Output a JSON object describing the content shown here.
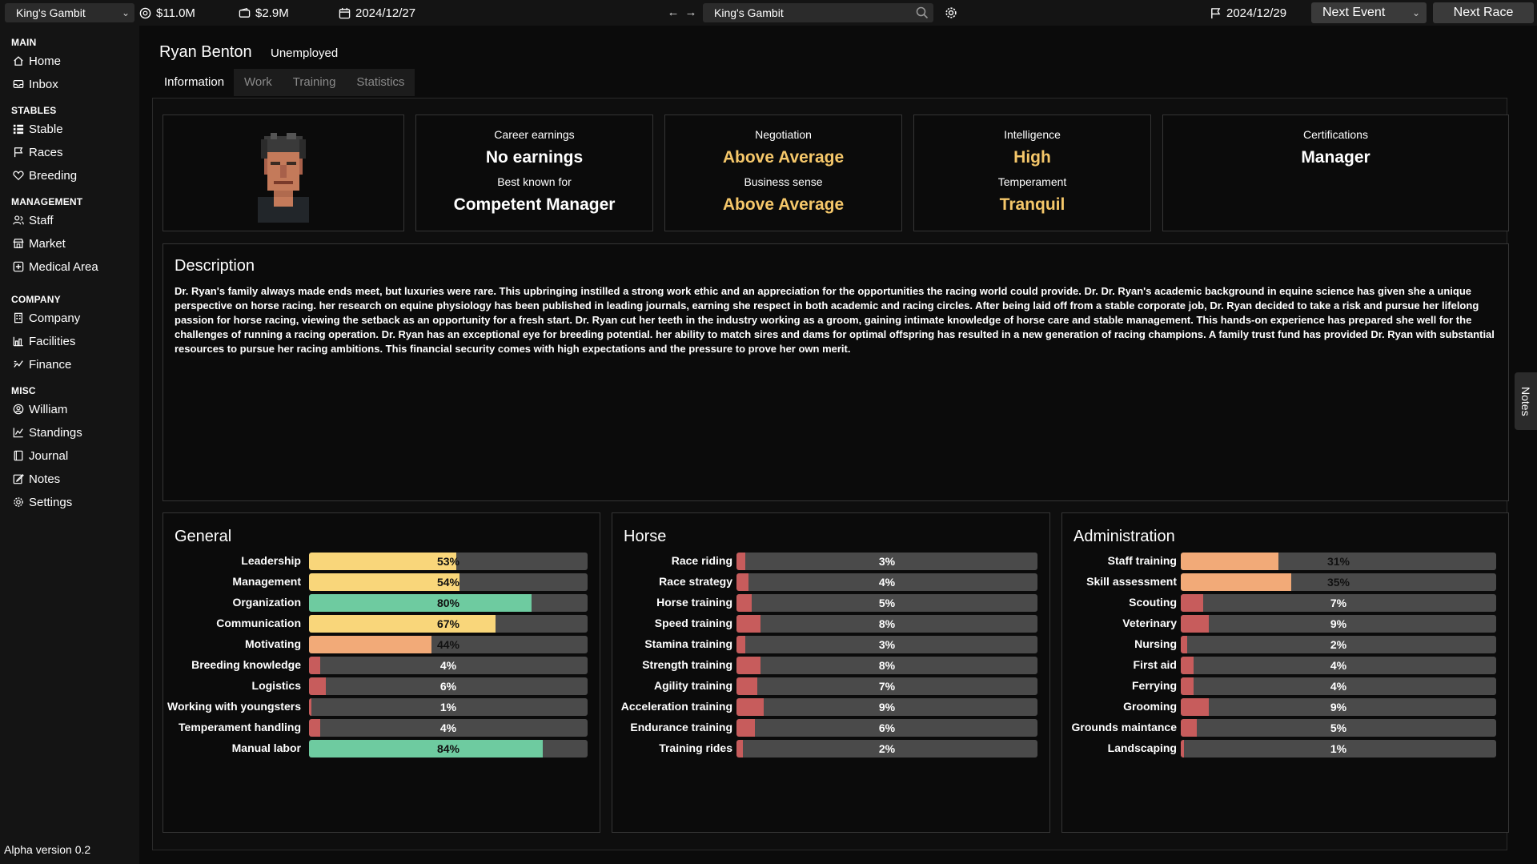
{
  "topbar": {
    "stable_name": "King's Gambit",
    "cash": "$11.0M",
    "bank": "$2.9M",
    "current_date": "2024/12/27",
    "search_value": "King's Gambit",
    "race_date": "2024/12/29",
    "next_event_label": "Next Event",
    "next_race_label": "Next Race"
  },
  "sidebar": {
    "sections": [
      {
        "title": "MAIN",
        "items": [
          {
            "label": "Home",
            "icon": "home-icon"
          },
          {
            "label": "Inbox",
            "icon": "inbox-icon"
          }
        ]
      },
      {
        "title": "STABLES",
        "items": [
          {
            "label": "Stable",
            "icon": "stable-icon"
          },
          {
            "label": "Races",
            "icon": "flag-icon"
          },
          {
            "label": "Breeding",
            "icon": "heart-icon"
          }
        ]
      },
      {
        "title": "MANAGEMENT",
        "items": [
          {
            "label": "Staff",
            "icon": "staff-icon"
          },
          {
            "label": "Market",
            "icon": "market-icon"
          },
          {
            "label": "Medical Area",
            "icon": "medical-icon"
          }
        ]
      },
      {
        "title": "COMPANY",
        "items": [
          {
            "label": "Company",
            "icon": "building-icon"
          },
          {
            "label": "Facilities",
            "icon": "facilities-icon"
          },
          {
            "label": "Finance",
            "icon": "finance-icon"
          }
        ]
      },
      {
        "title": "MISC",
        "items": [
          {
            "label": "William",
            "icon": "user-circle-icon"
          },
          {
            "label": "Standings",
            "icon": "chart-icon"
          },
          {
            "label": "Journal",
            "icon": "journal-icon"
          },
          {
            "label": "Notes",
            "icon": "notes-icon"
          },
          {
            "label": "Settings",
            "icon": "gear-icon"
          }
        ]
      }
    ],
    "version": "Alpha version 0.2"
  },
  "person": {
    "name": "Ryan Benton",
    "status": "Unemployed"
  },
  "tabs": [
    "Information",
    "Work",
    "Training",
    "Statistics"
  ],
  "cards": {
    "career_earnings_label": "Career earnings",
    "career_earnings_value": "No earnings",
    "best_known_label": "Best known for",
    "best_known_value": "Competent Manager",
    "negotiation_label": "Negotiation",
    "negotiation_value": "Above Average",
    "business_label": "Business sense",
    "business_value": "Above Average",
    "intelligence_label": "Intelligence",
    "intelligence_value": "High",
    "temperament_label": "Temperament",
    "temperament_value": "Tranquil",
    "certifications_label": "Certifications",
    "certifications_value": "Manager"
  },
  "description": {
    "title": "Description",
    "text": "Dr. Ryan's family always made ends meet, but luxuries were rare. This upbringing instilled a strong work ethic and an appreciation for the opportunities the racing world could provide. Dr. Dr. Ryan's academic background in equine science has given she a unique perspective on horse racing. her research on equine physiology has been published in leading journals, earning she respect in both academic and racing circles. After being laid off from a stable corporate job, Dr. Ryan decided to take a risk and pursue her lifelong passion for horse racing, viewing the setback as an opportunity for a fresh start. Dr. Ryan cut her teeth in the industry working as a groom, gaining intimate knowledge of horse care and stable management. This hands-on experience has prepared she well for the challenges of running a racing operation. Dr. Ryan has an exceptional eye for breeding potential. her ability to match sires and dams for optimal offspring has resulted in a new generation of racing champions. A family trust fund has provided Dr. Ryan with substantial resources to pursue her racing ambitions. This financial security comes with high expectations and the pressure to prove her own merit."
  },
  "colors": {
    "yellow": "#f9d67a",
    "green": "#6ecba0",
    "orange": "#f2aa78",
    "red": "#c75c5c",
    "gold_text": "#f5c76a"
  },
  "skills": {
    "general": {
      "title": "General",
      "items": [
        {
          "label": "Leadership",
          "value": 53,
          "pct": "53%",
          "color": "#f9d67a"
        },
        {
          "label": "Management",
          "value": 54,
          "pct": "54%",
          "color": "#f9d67a"
        },
        {
          "label": "Organization",
          "value": 80,
          "pct": "80%",
          "color": "#6ecba0"
        },
        {
          "label": "Communication",
          "value": 67,
          "pct": "67%",
          "color": "#f9d67a"
        },
        {
          "label": "Motivating",
          "value": 44,
          "pct": "44%",
          "color": "#f2aa78"
        },
        {
          "label": "Breeding knowledge",
          "value": 4,
          "pct": "4%",
          "color": "#c75c5c"
        },
        {
          "label": "Logistics",
          "value": 6,
          "pct": "6%",
          "color": "#c75c5c"
        },
        {
          "label": "Working with youngsters",
          "value": 1,
          "pct": "1%",
          "color": "#c75c5c"
        },
        {
          "label": "Temperament handling",
          "value": 4,
          "pct": "4%",
          "color": "#c75c5c"
        },
        {
          "label": "Manual labor",
          "value": 84,
          "pct": "84%",
          "color": "#6ecba0"
        }
      ]
    },
    "horse": {
      "title": "Horse",
      "items": [
        {
          "label": "Race riding",
          "value": 3,
          "pct": "3%",
          "color": "#c75c5c"
        },
        {
          "label": "Race strategy",
          "value": 4,
          "pct": "4%",
          "color": "#c75c5c"
        },
        {
          "label": "Horse training",
          "value": 5,
          "pct": "5%",
          "color": "#c75c5c"
        },
        {
          "label": "Speed training",
          "value": 8,
          "pct": "8%",
          "color": "#c75c5c"
        },
        {
          "label": "Stamina training",
          "value": 3,
          "pct": "3%",
          "color": "#c75c5c"
        },
        {
          "label": "Strength training",
          "value": 8,
          "pct": "8%",
          "color": "#c75c5c"
        },
        {
          "label": "Agility training",
          "value": 7,
          "pct": "7%",
          "color": "#c75c5c"
        },
        {
          "label": "Acceleration training",
          "value": 9,
          "pct": "9%",
          "color": "#c75c5c"
        },
        {
          "label": "Endurance training",
          "value": 6,
          "pct": "6%",
          "color": "#c75c5c"
        },
        {
          "label": "Training rides",
          "value": 2,
          "pct": "2%",
          "color": "#c75c5c"
        }
      ]
    },
    "administration": {
      "title": "Administration",
      "items": [
        {
          "label": "Staff training",
          "value": 31,
          "pct": "31%",
          "color": "#f2aa78"
        },
        {
          "label": "Skill assessment",
          "value": 35,
          "pct": "35%",
          "color": "#f2aa78"
        },
        {
          "label": "Scouting",
          "value": 7,
          "pct": "7%",
          "color": "#c75c5c"
        },
        {
          "label": "Veterinary",
          "value": 9,
          "pct": "9%",
          "color": "#c75c5c"
        },
        {
          "label": "Nursing",
          "value": 2,
          "pct": "2%",
          "color": "#c75c5c"
        },
        {
          "label": "First aid",
          "value": 4,
          "pct": "4%",
          "color": "#c75c5c"
        },
        {
          "label": "Ferrying",
          "value": 4,
          "pct": "4%",
          "color": "#c75c5c"
        },
        {
          "label": "Grooming",
          "value": 9,
          "pct": "9%",
          "color": "#c75c5c"
        },
        {
          "label": "Grounds maintance",
          "value": 5,
          "pct": "5%",
          "color": "#c75c5c"
        },
        {
          "label": "Landscaping",
          "value": 1,
          "pct": "1%",
          "color": "#c75c5c"
        }
      ]
    }
  },
  "notes_tab_label": "Notes"
}
